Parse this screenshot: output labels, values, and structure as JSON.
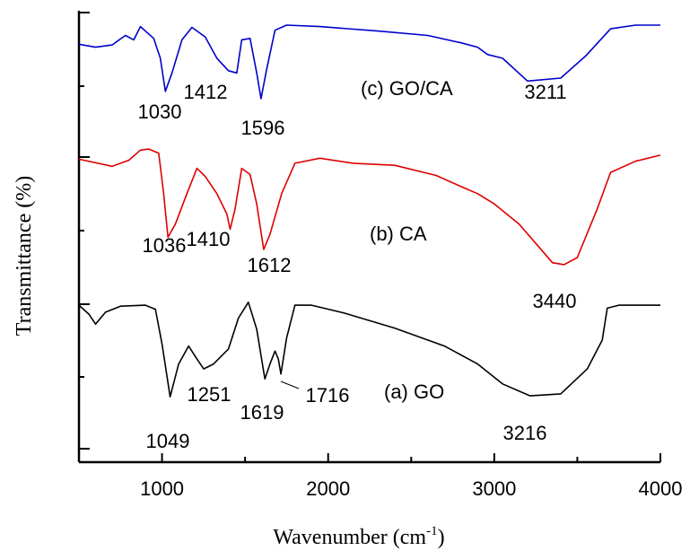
{
  "chart_data": {
    "type": "line",
    "xlabel": "Wavenumber (cm",
    "xlabel_sup": "-1",
    "xlabel_close": ")",
    "ylabel": "Transmittance (%)",
    "xlim": [
      500,
      4000
    ],
    "x_ticks": [
      {
        "value": 1000,
        "label": "1000"
      },
      {
        "value": 2000,
        "label": "2000"
      },
      {
        "value": 3000,
        "label": "3000"
      },
      {
        "value": 4000,
        "label": "4000"
      }
    ],
    "y_ticks_labeled": false,
    "grid": false,
    "series": [
      {
        "name": "(c) GO/CA",
        "color": "#0000cc",
        "points": [
          [
            500,
            0.74
          ],
          [
            600,
            0.7
          ],
          [
            700,
            0.73
          ],
          [
            780,
            0.86
          ],
          [
            830,
            0.8
          ],
          [
            870,
            0.98
          ],
          [
            950,
            0.82
          ],
          [
            990,
            0.55
          ],
          [
            1020,
            0.1
          ],
          [
            1060,
            0.35
          ],
          [
            1120,
            0.8
          ],
          [
            1180,
            0.97
          ],
          [
            1260,
            0.84
          ],
          [
            1330,
            0.55
          ],
          [
            1400,
            0.38
          ],
          [
            1450,
            0.35
          ],
          [
            1480,
            0.8
          ],
          [
            1530,
            0.82
          ],
          [
            1570,
            0.35
          ],
          [
            1596,
            0.0
          ],
          [
            1630,
            0.4
          ],
          [
            1680,
            0.93
          ],
          [
            1750,
            1.0
          ],
          [
            1950,
            0.98
          ],
          [
            2300,
            0.92
          ],
          [
            2600,
            0.86
          ],
          [
            2800,
            0.76
          ],
          [
            2900,
            0.7
          ],
          [
            2960,
            0.6
          ],
          [
            3050,
            0.55
          ],
          [
            3200,
            0.24
          ],
          [
            3400,
            0.28
          ],
          [
            3550,
            0.58
          ],
          [
            3700,
            0.95
          ],
          [
            3850,
            1.0
          ],
          [
            4000,
            1.0
          ]
        ],
        "peaks": [
          {
            "x": 1030,
            "label": "1030"
          },
          {
            "x": 1412,
            "label": "1412"
          },
          {
            "x": 1596,
            "label": "1596"
          },
          {
            "x": 3211,
            "label": "3211"
          }
        ]
      },
      {
        "name": "(b) CA",
        "color": "#dd0000",
        "points": [
          [
            500,
            0.89
          ],
          [
            700,
            0.82
          ],
          [
            800,
            0.88
          ],
          [
            870,
            0.98
          ],
          [
            920,
            0.99
          ],
          [
            980,
            0.95
          ],
          [
            1010,
            0.55
          ],
          [
            1036,
            0.12
          ],
          [
            1080,
            0.25
          ],
          [
            1150,
            0.55
          ],
          [
            1210,
            0.8
          ],
          [
            1260,
            0.72
          ],
          [
            1330,
            0.55
          ],
          [
            1390,
            0.35
          ],
          [
            1410,
            0.2
          ],
          [
            1440,
            0.4
          ],
          [
            1480,
            0.8
          ],
          [
            1530,
            0.74
          ],
          [
            1570,
            0.45
          ],
          [
            1612,
            0.0
          ],
          [
            1650,
            0.15
          ],
          [
            1720,
            0.55
          ],
          [
            1800,
            0.85
          ],
          [
            1950,
            0.9
          ],
          [
            2150,
            0.85
          ],
          [
            2400,
            0.83
          ],
          [
            2650,
            0.73
          ],
          [
            2800,
            0.62
          ],
          [
            2900,
            0.55
          ],
          [
            3000,
            0.45
          ],
          [
            3150,
            0.25
          ],
          [
            3350,
            -0.13
          ],
          [
            3420,
            -0.15
          ],
          [
            3500,
            -0.08
          ],
          [
            3620,
            0.4
          ],
          [
            3700,
            0.76
          ],
          [
            3850,
            0.87
          ],
          [
            4000,
            0.93
          ]
        ],
        "peaks": [
          {
            "x": 1036,
            "label": "1036"
          },
          {
            "x": 1410,
            "label": "1410"
          },
          {
            "x": 1612,
            "label": "1612"
          },
          {
            "x": 3440,
            "label": "3440"
          }
        ]
      },
      {
        "name": "(a) GO",
        "color": "#000000",
        "points": [
          [
            500,
            0.99
          ],
          [
            560,
            0.9
          ],
          [
            600,
            0.8
          ],
          [
            660,
            0.92
          ],
          [
            750,
            0.98
          ],
          [
            900,
            0.99
          ],
          [
            960,
            0.95
          ],
          [
            1000,
            0.6
          ],
          [
            1049,
            0.07
          ],
          [
            1100,
            0.4
          ],
          [
            1160,
            0.58
          ],
          [
            1210,
            0.45
          ],
          [
            1251,
            0.35
          ],
          [
            1310,
            0.4
          ],
          [
            1400,
            0.55
          ],
          [
            1460,
            0.86
          ],
          [
            1520,
            1.02
          ],
          [
            1570,
            0.75
          ],
          [
            1619,
            0.25
          ],
          [
            1650,
            0.4
          ],
          [
            1680,
            0.53
          ],
          [
            1700,
            0.45
          ],
          [
            1716,
            0.3
          ],
          [
            1750,
            0.66
          ],
          [
            1800,
            0.99
          ],
          [
            1900,
            0.99
          ],
          [
            2100,
            0.91
          ],
          [
            2400,
            0.76
          ],
          [
            2700,
            0.58
          ],
          [
            2900,
            0.4
          ],
          [
            3050,
            0.2
          ],
          [
            3216,
            0.08
          ],
          [
            3400,
            0.1
          ],
          [
            3560,
            0.35
          ],
          [
            3650,
            0.64
          ],
          [
            3680,
            0.96
          ],
          [
            3750,
            0.99
          ],
          [
            4000,
            0.99
          ]
        ],
        "peaks": [
          {
            "x": 1049,
            "label": "1049"
          },
          {
            "x": 1251,
            "label": "1251"
          },
          {
            "x": 1619,
            "label": "1619"
          },
          {
            "x": 1716,
            "label": "1716"
          },
          {
            "x": 3216,
            "label": "3216"
          }
        ]
      }
    ]
  }
}
